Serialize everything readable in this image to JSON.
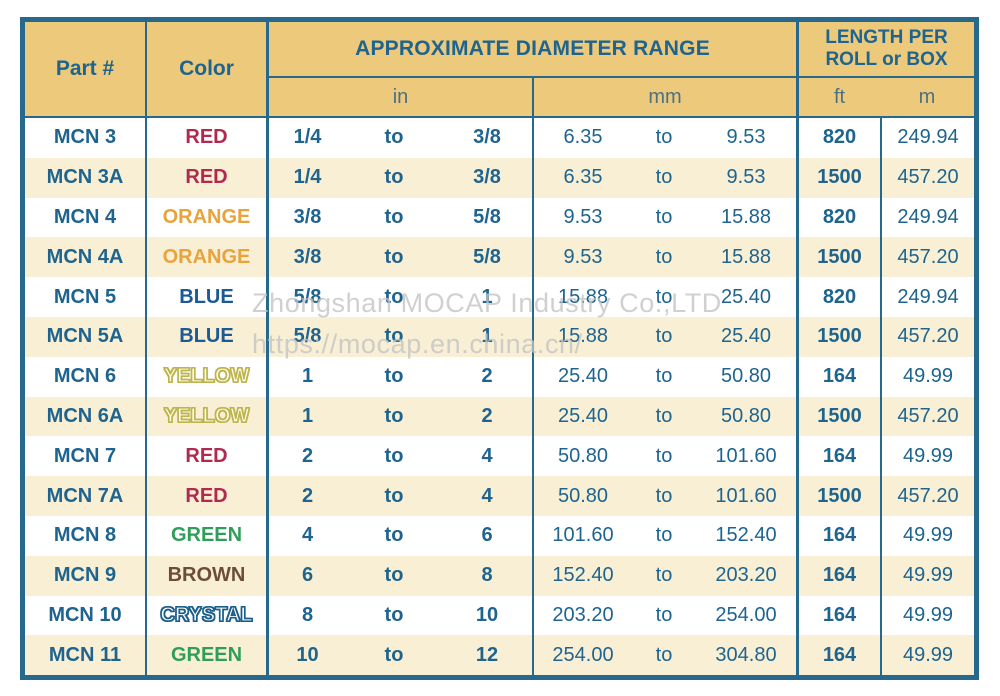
{
  "palette": {
    "gold": "#ecc97b",
    "line": "#26698c",
    "teal_text": "#1e648f",
    "unit_text": "#4d7080",
    "cream": "#f8efd4",
    "red": "#b22950",
    "orange": "#e8a33d",
    "blue": "#1c5a94",
    "green": "#2f9e58",
    "brown": "#6e4c3b",
    "yellow_stroke": "#bdb54e",
    "yellow_fill": "#fffdef",
    "crystal_stroke": "#1c5f8a",
    "crystal_fill": "#ffffff",
    "watermark": "#c3c3c3"
  },
  "header": {
    "part": "Part #",
    "color": "Color",
    "diameter": "APPROXIMATE DIAMETER RANGE",
    "length": "LENGTH PER ROLL or BOX",
    "unit_in": "in",
    "unit_mm": "mm",
    "unit_ft": "ft",
    "unit_m": "m"
  },
  "to_label": "to",
  "rows": [
    {
      "part": "MCN 3",
      "color": "RED",
      "color_key": "red",
      "in_min": "1/4",
      "in_max": "3/8",
      "mm_min": "6.35",
      "mm_max": "9.53",
      "ft": "820",
      "m": "249.94"
    },
    {
      "part": "MCN 3A",
      "color": "RED",
      "color_key": "red",
      "in_min": "1/4",
      "in_max": "3/8",
      "mm_min": "6.35",
      "mm_max": "9.53",
      "ft": "1500",
      "m": "457.20"
    },
    {
      "part": "MCN 4",
      "color": "ORANGE",
      "color_key": "orange",
      "in_min": "3/8",
      "in_max": "5/8",
      "mm_min": "9.53",
      "mm_max": "15.88",
      "ft": "820",
      "m": "249.94"
    },
    {
      "part": "MCN 4A",
      "color": "ORANGE",
      "color_key": "orange",
      "in_min": "3/8",
      "in_max": "5/8",
      "mm_min": "9.53",
      "mm_max": "15.88",
      "ft": "1500",
      "m": "457.20"
    },
    {
      "part": "MCN 5",
      "color": "BLUE",
      "color_key": "blue",
      "in_min": "5/8",
      "in_max": "1",
      "mm_min": "15.88",
      "mm_max": "25.40",
      "ft": "820",
      "m": "249.94"
    },
    {
      "part": "MCN 5A",
      "color": "BLUE",
      "color_key": "blue",
      "in_min": "5/8",
      "in_max": "1",
      "mm_min": "15.88",
      "mm_max": "25.40",
      "ft": "1500",
      "m": "457.20"
    },
    {
      "part": "MCN 6",
      "color": "YELLOW",
      "color_key": "yellow",
      "in_min": "1",
      "in_max": "2",
      "mm_min": "25.40",
      "mm_max": "50.80",
      "ft": "164",
      "m": "49.99"
    },
    {
      "part": "MCN 6A",
      "color": "YELLOW",
      "color_key": "yellow",
      "in_min": "1",
      "in_max": "2",
      "mm_min": "25.40",
      "mm_max": "50.80",
      "ft": "1500",
      "m": "457.20"
    },
    {
      "part": "MCN 7",
      "color": "RED",
      "color_key": "red",
      "in_min": "2",
      "in_max": "4",
      "mm_min": "50.80",
      "mm_max": "101.60",
      "ft": "164",
      "m": "49.99"
    },
    {
      "part": "MCN 7A",
      "color": "RED",
      "color_key": "red",
      "in_min": "2",
      "in_max": "4",
      "mm_min": "50.80",
      "mm_max": "101.60",
      "ft": "1500",
      "m": "457.20"
    },
    {
      "part": "MCN 8",
      "color": "GREEN",
      "color_key": "green",
      "in_min": "4",
      "in_max": "6",
      "mm_min": "101.60",
      "mm_max": "152.40",
      "ft": "164",
      "m": "49.99"
    },
    {
      "part": "MCN 9",
      "color": "BROWN",
      "color_key": "brown",
      "in_min": "6",
      "in_max": "8",
      "mm_min": "152.40",
      "mm_max": "203.20",
      "ft": "164",
      "m": "49.99"
    },
    {
      "part": "MCN 10",
      "color": "CRYSTAL",
      "color_key": "crystal",
      "in_min": "8",
      "in_max": "10",
      "mm_min": "203.20",
      "mm_max": "254.00",
      "ft": "164",
      "m": "49.99"
    },
    {
      "part": "MCN 11",
      "color": "GREEN",
      "color_key": "green",
      "in_min": "10",
      "in_max": "12",
      "mm_min": "254.00",
      "mm_max": "304.80",
      "ft": "164",
      "m": "49.99"
    }
  ],
  "watermark": {
    "line1": "Zhongshan MOCAP Industry Co.,LTD",
    "line2": "https://mocap.en.china.cn/"
  }
}
